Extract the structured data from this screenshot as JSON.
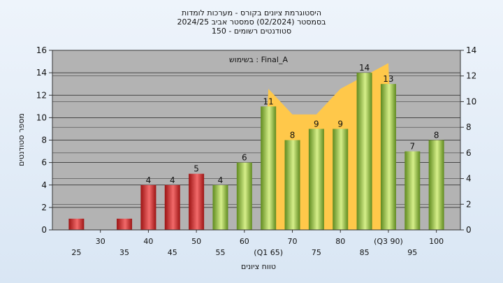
{
  "chart_data": {
    "type": "bar",
    "title_lines": [
      "היסטוגרמת ציונים בקורס - מערכות לומדות",
      "בסמסטר  (02/2024)  סמסטר אביב 2024/25",
      "סטודנטים רשומים - 150"
    ],
    "annotation": "בשימוש : Final_A",
    "xlabel": "טווח ציונים",
    "ylabel": "מספר סטודנטים",
    "left_ylim": [
      0,
      16
    ],
    "left_yticks": [
      "0",
      "2",
      "4",
      "6",
      "8",
      "10",
      "12",
      "14",
      "16"
    ],
    "right_ylim": [
      0,
      14
    ],
    "right_yticks": [
      "0",
      "2",
      "4",
      "6",
      "8",
      "10",
      "12",
      "14"
    ],
    "x_tick_labels_upper": [
      "30",
      "40",
      "50",
      "60",
      "70",
      "80",
      "(Q3 90)",
      "100"
    ],
    "x_tick_labels_lower": [
      "25",
      "35",
      "45",
      "55",
      "(Q1 65)",
      "75",
      "85",
      "95"
    ],
    "bins": [
      25,
      30,
      35,
      40,
      45,
      50,
      55,
      60,
      65,
      70,
      75,
      80,
      85,
      90,
      95,
      100
    ],
    "values": [
      1,
      0,
      1,
      4,
      4,
      5,
      4,
      6,
      11,
      8,
      9,
      9,
      14,
      13,
      7,
      8
    ],
    "data_labels": [
      "",
      "",
      "",
      "4",
      "4",
      "5",
      "4",
      "6",
      "11",
      "8",
      "9",
      "9",
      "14",
      "13",
      "7",
      "8"
    ],
    "fail_threshold_bin": 55,
    "bar_colors": {
      "fail": "#d42a2a",
      "pass": "#8ab33a"
    },
    "area_series": {
      "x": [
        65,
        70,
        75,
        80,
        85,
        90
      ],
      "values": [
        11,
        9,
        9,
        11,
        12,
        13
      ]
    },
    "area_color": "#ffc84a",
    "plot_background": "#b3b3b3",
    "grid": true,
    "legend": "none"
  }
}
